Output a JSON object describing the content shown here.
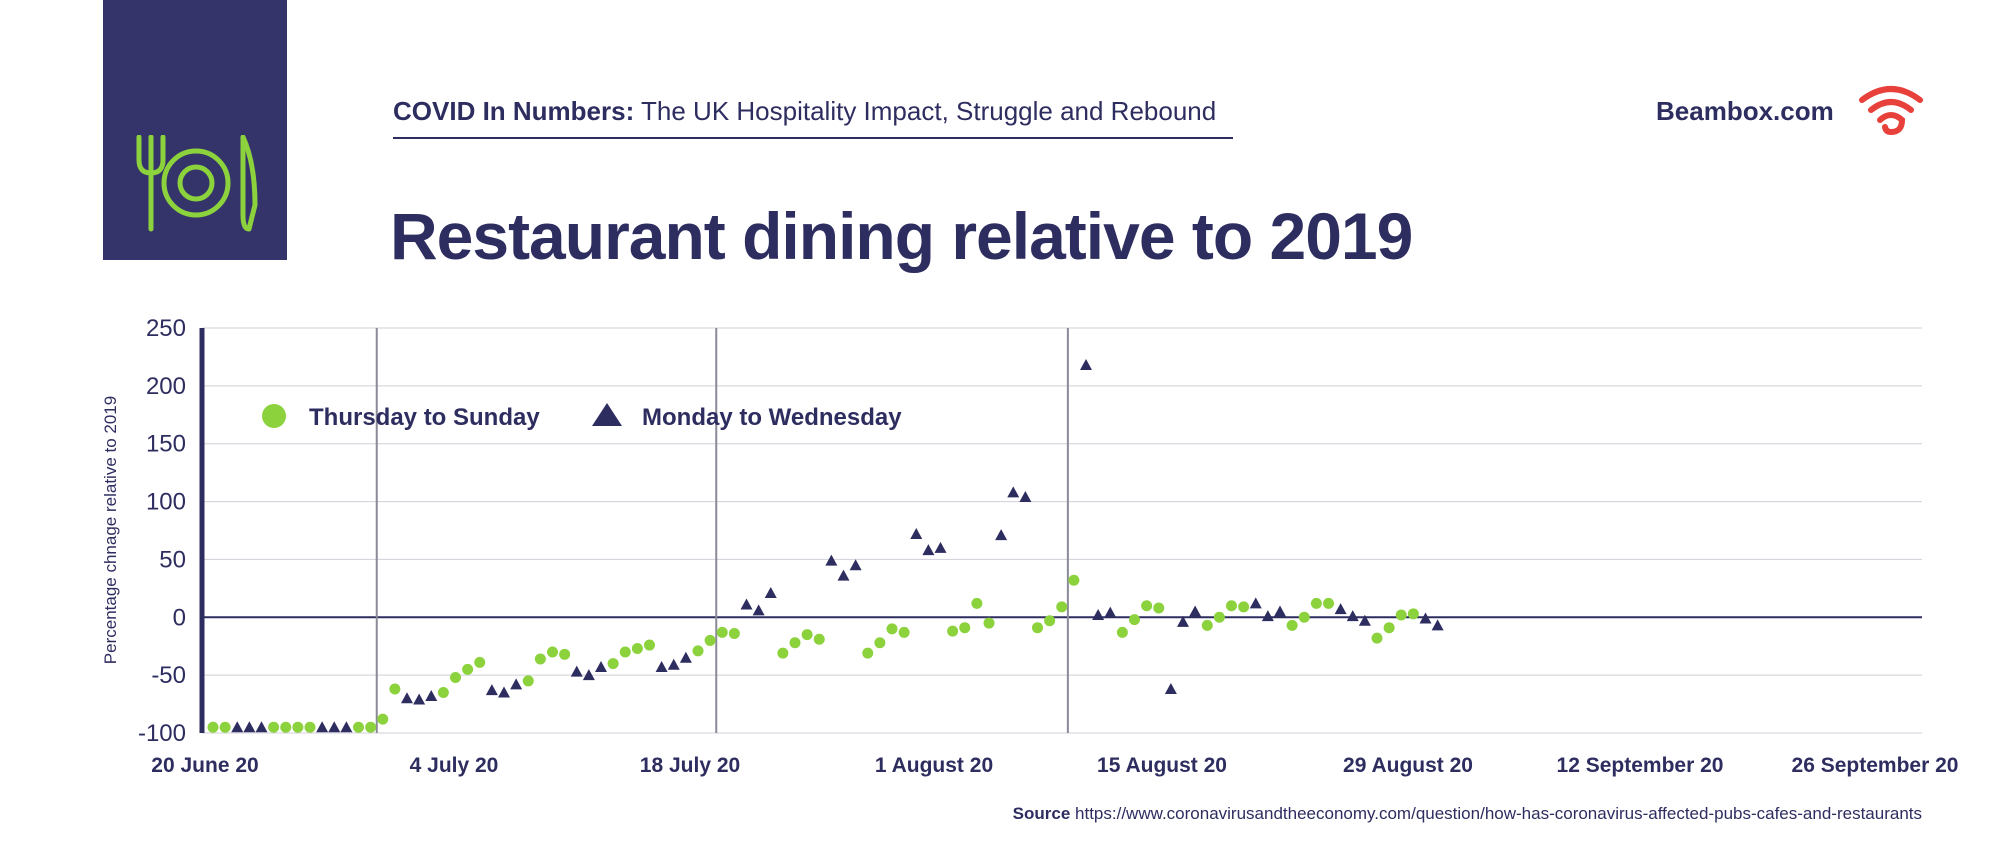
{
  "header": {
    "series_label": "COVID In Numbers:",
    "series_subtitle": "The UK Hospitality Impact, Struggle and Rebound",
    "brand": "Beambox.com"
  },
  "colors": {
    "navy": "#2e2d60",
    "green": "#8cd23c",
    "brand_red": "#e8413b",
    "logo_bg": "#34346a"
  },
  "icons": [
    "fork-knife-plate-icon",
    "wifi-brand-icon"
  ],
  "source": {
    "label": "Source",
    "url": "https://www.coronavirusandtheeconomy.com/question/how-has-coronavirus-affected-pubs-cafes-and-restaurants"
  },
  "chart_data": {
    "type": "scatter",
    "title": "Restaurant dining relative to 2019",
    "ylabel": "Percentage chnage relative to 2019",
    "ylim": [
      -100,
      250
    ],
    "yticks": [
      "250",
      "200",
      "150",
      "100",
      "50",
      "0",
      "-50",
      "-100"
    ],
    "xticks": [
      "20 June 20",
      "4 July 20",
      "18 July 20",
      "1 August 20",
      "15 August 20",
      "29 August 20",
      "12 September 20",
      "26 September 20"
    ],
    "grid": true,
    "legend_position": "top-left",
    "categories": [
      "2020-06-20",
      "2020-06-21",
      "2020-06-22",
      "2020-06-23",
      "2020-06-24",
      "2020-06-25",
      "2020-06-26",
      "2020-06-27",
      "2020-06-28",
      "2020-06-29",
      "2020-06-30",
      "2020-07-01",
      "2020-07-02",
      "2020-07-03",
      "2020-07-04",
      "2020-07-05",
      "2020-07-06",
      "2020-07-07",
      "2020-07-08",
      "2020-07-09",
      "2020-07-10",
      "2020-07-11",
      "2020-07-12",
      "2020-07-13",
      "2020-07-14",
      "2020-07-15",
      "2020-07-16",
      "2020-07-17",
      "2020-07-18",
      "2020-07-19",
      "2020-07-20",
      "2020-07-21",
      "2020-07-22",
      "2020-07-23",
      "2020-07-24",
      "2020-07-25",
      "2020-07-26",
      "2020-07-27",
      "2020-07-28",
      "2020-07-29",
      "2020-07-30",
      "2020-07-31",
      "2020-08-01",
      "2020-08-02",
      "2020-08-03",
      "2020-08-04",
      "2020-08-05",
      "2020-08-06",
      "2020-08-07",
      "2020-08-08",
      "2020-08-09",
      "2020-08-10",
      "2020-08-11",
      "2020-08-12",
      "2020-08-13",
      "2020-08-14",
      "2020-08-15",
      "2020-08-16",
      "2020-08-17",
      "2020-08-18",
      "2020-08-19",
      "2020-08-20",
      "2020-08-21",
      "2020-08-22",
      "2020-08-23",
      "2020-08-24",
      "2020-08-25",
      "2020-08-26",
      "2020-08-27",
      "2020-08-28",
      "2020-08-29",
      "2020-08-30",
      "2020-08-31",
      "2020-09-01",
      "2020-09-02",
      "2020-09-03",
      "2020-09-04",
      "2020-09-05",
      "2020-09-06",
      "2020-09-07",
      "2020-09-08",
      "2020-09-09",
      "2020-09-10",
      "2020-09-11",
      "2020-09-12",
      "2020-09-13",
      "2020-09-14",
      "2020-09-15",
      "2020-09-16",
      "2020-09-17",
      "2020-09-18",
      "2020-09-19",
      "2020-09-20",
      "2020-09-21",
      "2020-09-22",
      "2020-09-23",
      "2020-09-24",
      "2020-09-25",
      "2020-09-26",
      "2020-09-27",
      "2020-09-28",
      "2020-09-29",
      "2020-09-30"
    ],
    "series": [
      {
        "name": "Thursday to Sunday",
        "marker": "circle",
        "points": [
          [
            "2020-06-20",
            -95
          ],
          [
            "2020-06-21",
            -95
          ],
          [
            "2020-06-25",
            -95
          ],
          [
            "2020-06-26",
            -95
          ],
          [
            "2020-06-27",
            -95
          ],
          [
            "2020-06-28",
            -95
          ],
          [
            "2020-07-02",
            -95
          ],
          [
            "2020-07-03",
            -95
          ],
          [
            "2020-07-04",
            -88
          ],
          [
            "2020-07-05",
            -62
          ],
          [
            "2020-07-09",
            -65
          ],
          [
            "2020-07-10",
            -52
          ],
          [
            "2020-07-11",
            -45
          ],
          [
            "2020-07-12",
            -39
          ],
          [
            "2020-07-16",
            -55
          ],
          [
            "2020-07-17",
            -36
          ],
          [
            "2020-07-18",
            -30
          ],
          [
            "2020-07-19",
            -32
          ],
          [
            "2020-07-23",
            -40
          ],
          [
            "2020-07-24",
            -30
          ],
          [
            "2020-07-25",
            -27
          ],
          [
            "2020-07-26",
            -24
          ],
          [
            "2020-07-30",
            -29
          ],
          [
            "2020-07-31",
            -20
          ],
          [
            "2020-08-01",
            -13
          ],
          [
            "2020-08-02",
            -14
          ],
          [
            "2020-08-06",
            -31
          ],
          [
            "2020-08-07",
            -22
          ],
          [
            "2020-08-08",
            -15
          ],
          [
            "2020-08-09",
            -19
          ],
          [
            "2020-08-13",
            -31
          ],
          [
            "2020-08-14",
            -22
          ],
          [
            "2020-08-15",
            -10
          ],
          [
            "2020-08-16",
            -13
          ],
          [
            "2020-08-20",
            -12
          ],
          [
            "2020-08-21",
            -9
          ],
          [
            "2020-08-22",
            12
          ],
          [
            "2020-08-23",
            -5
          ],
          [
            "2020-08-27",
            -9
          ],
          [
            "2020-08-28",
            -3
          ],
          [
            "2020-08-29",
            9
          ],
          [
            "2020-08-30",
            32
          ],
          [
            "2020-09-03",
            -13
          ],
          [
            "2020-09-04",
            -2
          ],
          [
            "2020-09-05",
            10
          ],
          [
            "2020-09-06",
            8
          ],
          [
            "2020-09-10",
            -7
          ],
          [
            "2020-09-11",
            0
          ],
          [
            "2020-09-12",
            10
          ],
          [
            "2020-09-13",
            9
          ],
          [
            "2020-09-17",
            -7
          ],
          [
            "2020-09-18",
            0
          ],
          [
            "2020-09-19",
            12
          ],
          [
            "2020-09-20",
            12
          ],
          [
            "2020-09-24",
            -18
          ],
          [
            "2020-09-25",
            -9
          ],
          [
            "2020-09-26",
            2
          ],
          [
            "2020-09-27",
            3
          ]
        ]
      },
      {
        "name": "Monday to Wednesday",
        "marker": "triangle",
        "points": [
          [
            "2020-06-22",
            -95
          ],
          [
            "2020-06-23",
            -95
          ],
          [
            "2020-06-24",
            -95
          ],
          [
            "2020-06-29",
            -95
          ],
          [
            "2020-06-30",
            -95
          ],
          [
            "2020-07-01",
            -95
          ],
          [
            "2020-07-06",
            -70
          ],
          [
            "2020-07-07",
            -71
          ],
          [
            "2020-07-08",
            -68
          ],
          [
            "2020-07-13",
            -63
          ],
          [
            "2020-07-14",
            -65
          ],
          [
            "2020-07-15",
            -58
          ],
          [
            "2020-07-20",
            -47
          ],
          [
            "2020-07-21",
            -50
          ],
          [
            "2020-07-22",
            -43
          ],
          [
            "2020-07-27",
            -43
          ],
          [
            "2020-07-28",
            -41
          ],
          [
            "2020-07-29",
            -35
          ],
          [
            "2020-08-03",
            11
          ],
          [
            "2020-08-04",
            6
          ],
          [
            "2020-08-05",
            21
          ],
          [
            "2020-08-10",
            49
          ],
          [
            "2020-08-11",
            36
          ],
          [
            "2020-08-12",
            45
          ],
          [
            "2020-08-17",
            72
          ],
          [
            "2020-08-18",
            58
          ],
          [
            "2020-08-19",
            60
          ],
          [
            "2020-08-24",
            71
          ],
          [
            "2020-08-25",
            108
          ],
          [
            "2020-08-26",
            104
          ],
          [
            "2020-08-31",
            218
          ],
          [
            "2020-09-01",
            2
          ],
          [
            "2020-09-02",
            4
          ],
          [
            "2020-09-07",
            -62
          ],
          [
            "2020-09-08",
            -4
          ],
          [
            "2020-09-09",
            5
          ],
          [
            "2020-09-14",
            12
          ],
          [
            "2020-09-15",
            1
          ],
          [
            "2020-09-16",
            5
          ],
          [
            "2020-09-21",
            7
          ],
          [
            "2020-09-22",
            1
          ],
          [
            "2020-09-23",
            -3
          ],
          [
            "2020-09-28",
            -1
          ],
          [
            "2020-09-29",
            -7
          ]
        ]
      }
    ]
  }
}
